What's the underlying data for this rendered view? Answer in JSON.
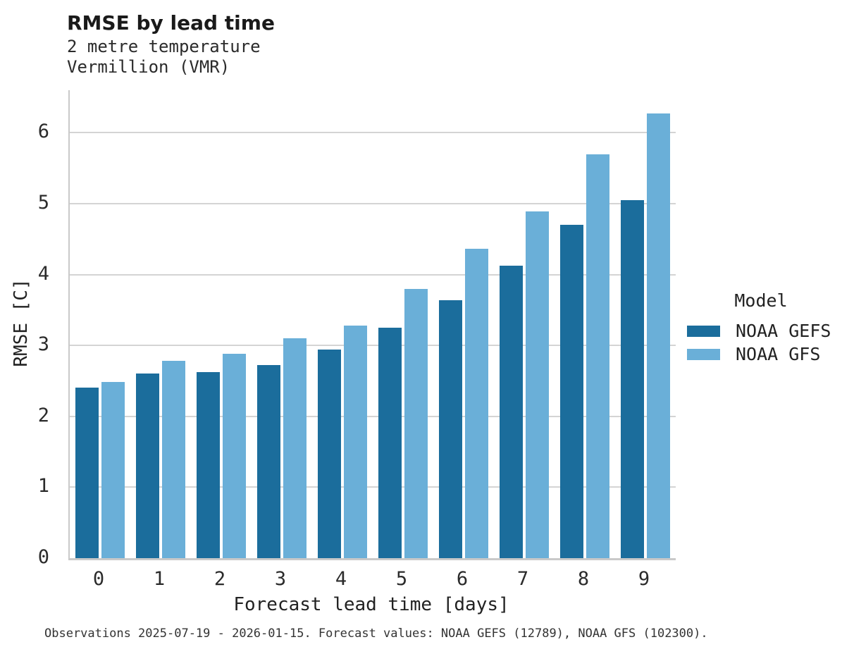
{
  "header": {
    "title": "RMSE by lead time",
    "subtitle_line1": "2 metre temperature",
    "subtitle_line2": "Vermillion (VMR)"
  },
  "footer": {
    "caption": "Observations 2025-07-19 - 2026-01-15. Forecast values: NOAA GEFS (12789), NOAA GFS (102300)."
  },
  "chart_data": {
    "type": "bar",
    "title": "RMSE by lead time",
    "subtitle_line1": "2 metre temperature",
    "subtitle_line2": "Vermillion (VMR)",
    "categories": [
      "0",
      "1",
      "2",
      "3",
      "4",
      "5",
      "6",
      "7",
      "8",
      "9"
    ],
    "series": [
      {
        "name": "NOAA GEFS",
        "color": "#1b6d9c",
        "values": [
          2.41,
          2.6,
          2.62,
          2.72,
          2.94,
          3.25,
          3.64,
          4.13,
          4.7,
          5.05
        ]
      },
      {
        "name": "NOAA GFS",
        "color": "#6aafd8",
        "values": [
          2.49,
          2.78,
          2.88,
          3.1,
          3.28,
          3.8,
          4.36,
          4.89,
          5.7,
          6.27
        ]
      }
    ],
    "xlabel": "Forecast lead time [days]",
    "ylabel": "RMSE [C]",
    "ylim": [
      0,
      6.6
    ],
    "yticks": [
      0,
      1,
      2,
      3,
      4,
      5,
      6
    ],
    "grid": true,
    "legend_title": "Model",
    "legend_position": "right",
    "colors": {
      "gridline": "#d4d4d4",
      "spine": "#c9c9c9",
      "text": "#2b2b2b"
    }
  }
}
